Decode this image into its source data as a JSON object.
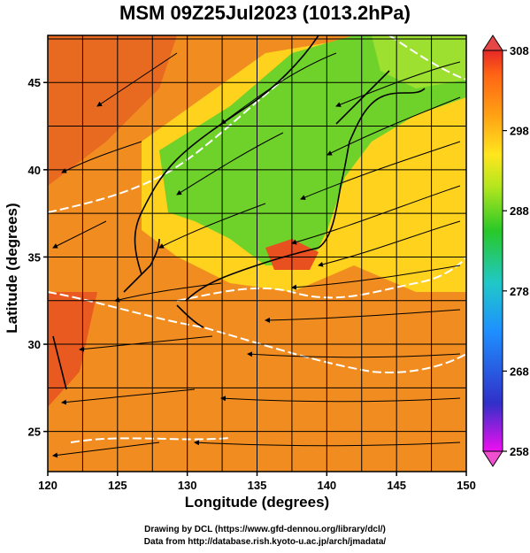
{
  "title": "MSM 09Z25Jul2023 (1013.2hPa)",
  "x_axis": {
    "label": "Longitude (degrees)",
    "ticks": [
      120,
      125,
      130,
      135,
      140,
      145,
      150
    ],
    "range": [
      120,
      150
    ]
  },
  "y_axis": {
    "label": "Latitude  (degrees)",
    "ticks": [
      25,
      30,
      35,
      40,
      45
    ],
    "range": [
      22.7,
      47.7
    ]
  },
  "colorbar": {
    "ticks": [
      258,
      268,
      278,
      288,
      298,
      308
    ],
    "range": [
      258,
      308
    ],
    "colors": [
      "#f00ff0",
      "#3030c8",
      "#1e90ff",
      "#20c8c8",
      "#28c828",
      "#b4e61e",
      "#ffe61e",
      "#ffa014",
      "#ff6414",
      "#e62828"
    ]
  },
  "map_colors": {
    "warm": "#f08c20",
    "hot": "#e85020",
    "mild": "#ffd21e",
    "cool_land": "#6ed22a",
    "contour": "#ffffff",
    "coast": "#000000"
  },
  "credits": {
    "line1": "Drawing by DCL (https://www.gfd-dennou.org/library/dcl/)",
    "line2": "Data from http://database.rish.kyoto-u.ac.jp/arch/jmadata/"
  }
}
